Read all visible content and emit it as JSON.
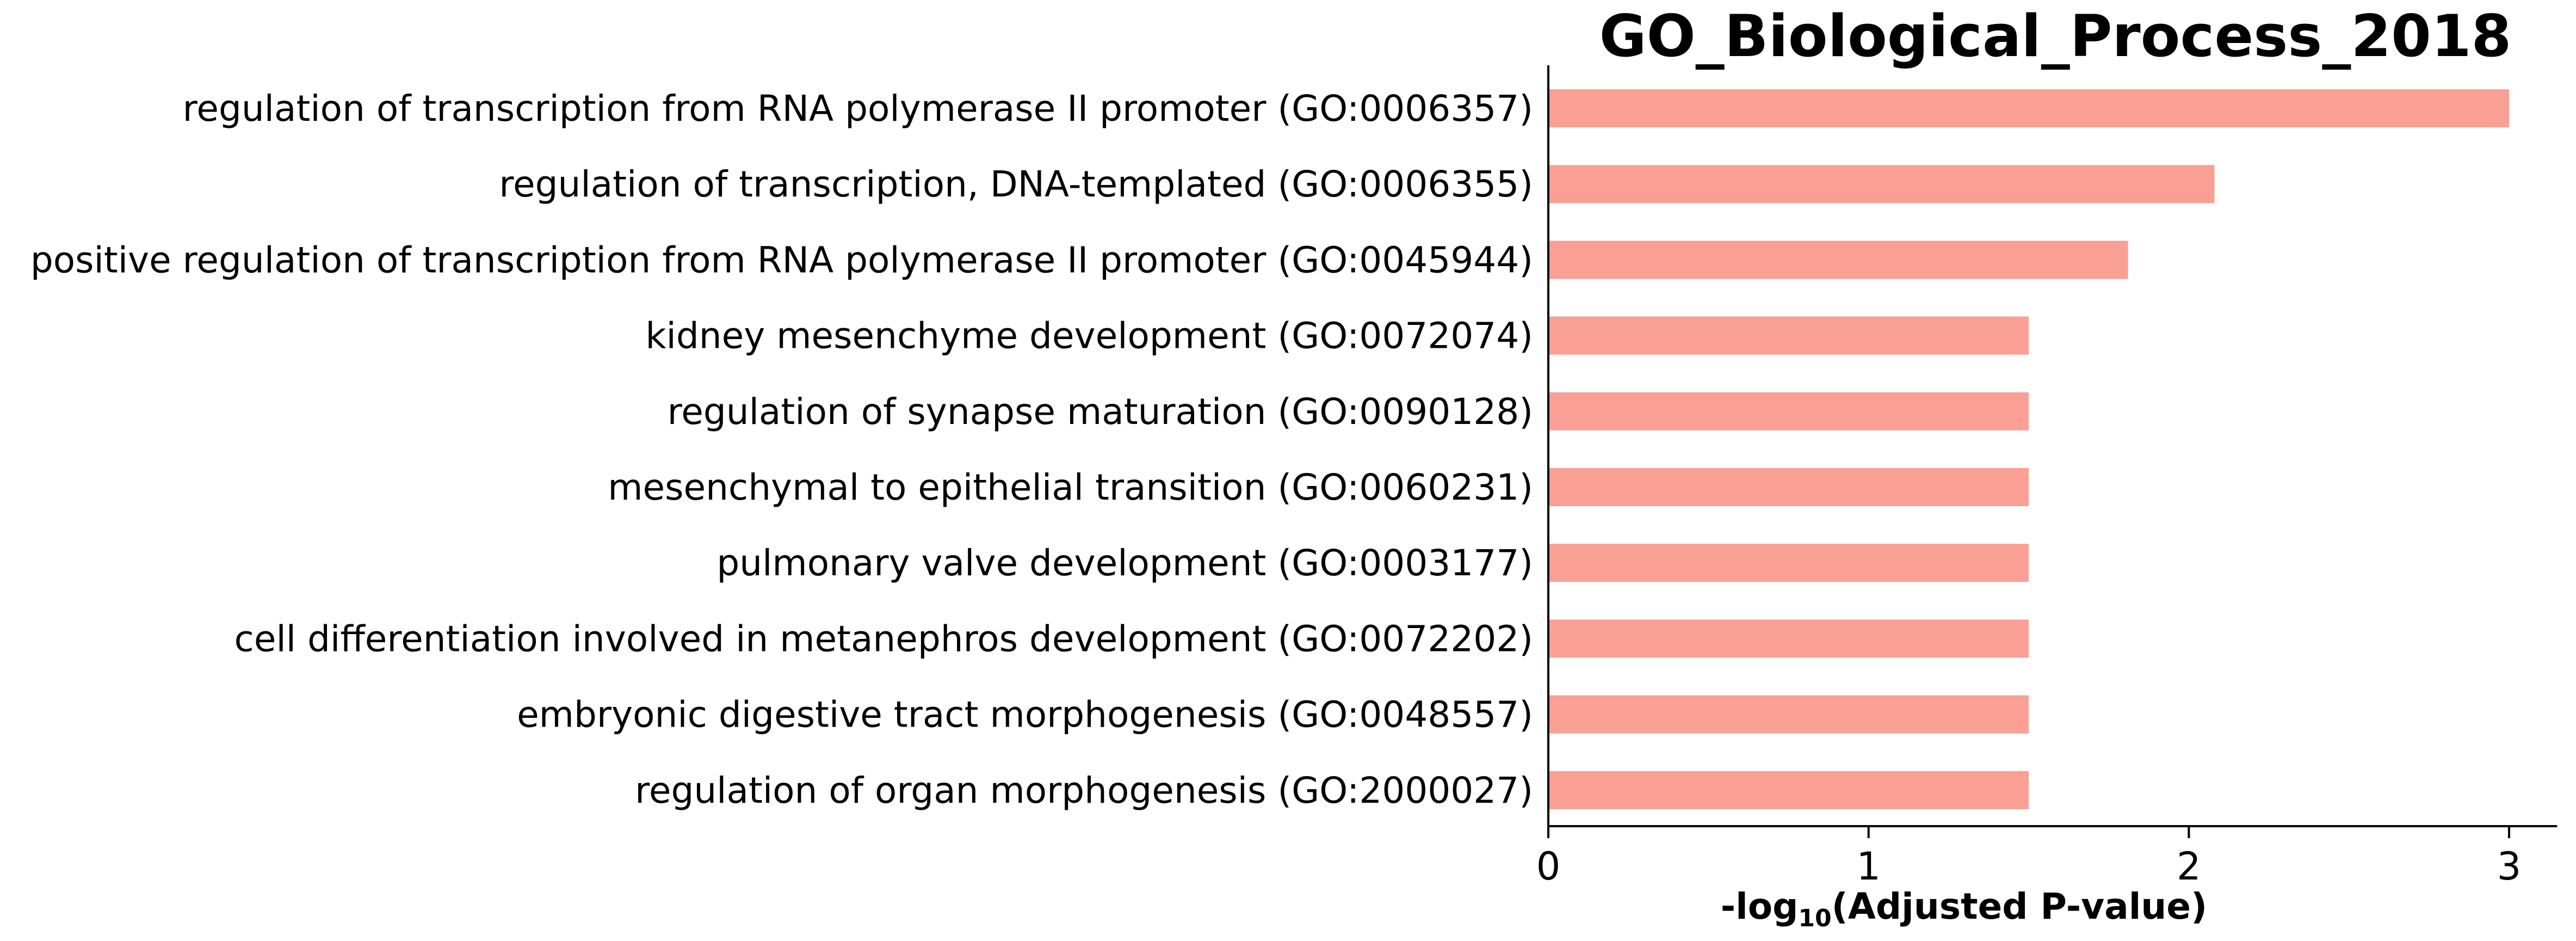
{
  "chart_data": {
    "type": "bar",
    "orientation": "horizontal",
    "title": "GO_Biological_Process_2018",
    "xlabel": {
      "prefix": "-log",
      "subscript": "10",
      "suffix": "(Adjusted P-value)"
    },
    "ylabel": "",
    "xlim": [
      0,
      3.15
    ],
    "xticks": [
      "0",
      "1",
      "2",
      "3"
    ],
    "grid": false,
    "legend": "none",
    "bar_color": "#fa9f94",
    "axis_color": "#000000",
    "categories": [
      "regulation of transcription from RNA polymerase II promoter (GO:0006357)",
      "regulation of transcription, DNA-templated (GO:0006355)",
      "positive regulation of transcription from RNA polymerase II promoter (GO:0045944)",
      "kidney mesenchyme development (GO:0072074)",
      "regulation of synapse maturation (GO:0090128)",
      "mesenchymal to epithelial transition (GO:0060231)",
      "pulmonary valve development (GO:0003177)",
      "cell differentiation involved in metanephros development (GO:0072202)",
      "embryonic digestive tract morphogenesis (GO:0048557)",
      "regulation of organ morphogenesis (GO:2000027)"
    ],
    "values": [
      3.0,
      2.08,
      1.81,
      1.5,
      1.5,
      1.5,
      1.5,
      1.5,
      1.5,
      1.5
    ]
  }
}
